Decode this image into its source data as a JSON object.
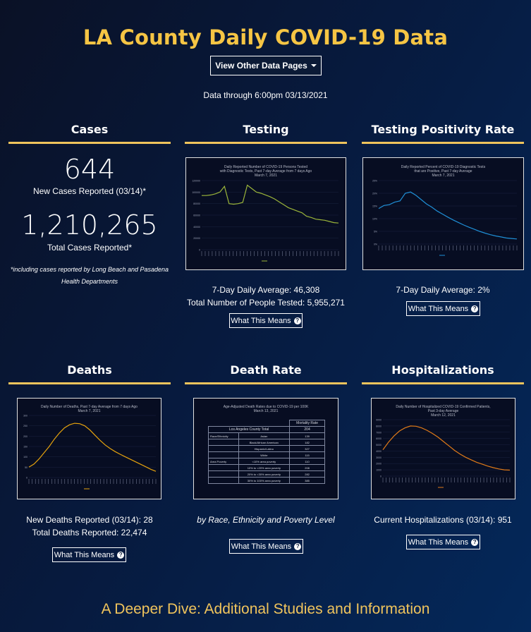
{
  "page": {
    "title": "LA County Daily COVID-19 Data",
    "dropdown_label": "View Other Data Pages",
    "updated": "Data through 6:00pm 03/13/2021",
    "footer": "A Deeper Dive: Additional Studies and Information"
  },
  "cases": {
    "title": "Cases",
    "new_count": "644",
    "new_label": "New Cases Reported (03/14)*",
    "total_count": "1,210,265",
    "total_label": "Total Cases Reported*",
    "note_line1": "*including cases reported by Long Beach and Pasadena",
    "note_line2": "Health Departments"
  },
  "testing": {
    "title": "Testing",
    "chart_title1": "Daily Reported Number of COVID-19 Persons Tested",
    "chart_title2": "with Diagnostic Tests, Past 7-day Average from 7 days Ago",
    "chart_date": "March 7, 2021",
    "avg_text": "7-Day Daily Average: 46,308",
    "total_text": "Total Number of People Tested: 5,955,271",
    "button": "What This Means"
  },
  "positivity": {
    "title": "Testing Positivity Rate",
    "chart_title1": "Daily Reported Percent of COVID-19 Diagnostic Tests",
    "chart_title2": "that are Positive, Past 7-day Average",
    "chart_date": "March 7, 2021",
    "avg_text": "7-Day Daily Average: 2%",
    "button": "What This Means"
  },
  "deaths": {
    "title": "Deaths",
    "chart_title1": "Daily Number of Deaths, Past 7-day Average from 7 days Ago",
    "chart_date": "March 7, 2021",
    "new_text": "New Deaths Reported (03/14): 28",
    "total_text": "Total Deaths Reported: 22,474",
    "button": "What This Means"
  },
  "death_rate": {
    "title": "Death Rate",
    "chart_title1": "Age-Adjusted Death Rates due to COVID-19 per 100K",
    "chart_date": "March 13, 2021",
    "caption": "by Race, Ethnicity and Poverty Level",
    "button": "What This Means",
    "table": {
      "header": "Mortality Rate",
      "county_label": "Los Angeles County Total",
      "county_value": "204",
      "group_race": "Race/Ethnicity",
      "group_poverty": "Area Poverty",
      "rows": [
        {
          "label": "Asian",
          "value": "139"
        },
        {
          "label": "Black/African American",
          "value": "182"
        },
        {
          "label": "Hispanic/Latino",
          "value": "327"
        },
        {
          "label": "White",
          "value": "115"
        },
        {
          "label": "<10% area poverty",
          "value": "110"
        },
        {
          "label": "10% to <20% area poverty",
          "value": "208"
        },
        {
          "label": "20% to <30% area poverty",
          "value": "282"
        },
        {
          "label": "30% to 100% area poverty",
          "value": "385"
        }
      ]
    }
  },
  "hosp": {
    "title": "Hospitalizations",
    "chart_title1": "Daily Number of Hospitalized COVID-19 Confirmed Patients,",
    "chart_title2": "Past 3-day Average",
    "chart_date": "March 12, 2021",
    "current_text": "Current Hospitalizations (03/14): 951",
    "button": "What This Means"
  },
  "chart_data": [
    {
      "type": "line",
      "name": "testing",
      "color": "#9bb53a",
      "ylim": [
        0,
        120000
      ],
      "y_ticks": [
        "0",
        "20000",
        "40000",
        "60000",
        "80000",
        "100000",
        "120000"
      ],
      "values": [
        94000,
        94000,
        95000,
        97000,
        100000,
        110000,
        80000,
        79000,
        80000,
        82000,
        112000,
        106000,
        100000,
        98000,
        95000,
        92000,
        88000,
        83000,
        78000,
        73000,
        70000,
        67000,
        64000,
        58000,
        56000,
        53000,
        52000,
        51000,
        49000,
        47000,
        46300
      ]
    },
    {
      "type": "line",
      "name": "positivity",
      "color": "#1f8fd6",
      "ylim": [
        0,
        25
      ],
      "y_ticks": [
        "0%",
        "5%",
        "10%",
        "15%",
        "20%",
        "25%"
      ],
      "values": [
        14,
        15.2,
        15.5,
        16.5,
        17,
        20,
        20.5,
        19.2,
        17.5,
        15.8,
        14.5,
        13,
        11.8,
        10.6,
        9.5,
        8.5,
        7.5,
        6.6,
        5.8,
        5,
        4.3,
        3.7,
        3.2,
        2.8,
        2.4,
        2.2,
        2
      ]
    },
    {
      "type": "line",
      "name": "deaths",
      "color": "#e5a20d",
      "ylim": [
        0,
        300
      ],
      "y_ticks": [
        "0",
        "50",
        "100",
        "150",
        "200",
        "250",
        "300"
      ],
      "values": [
        50,
        65,
        90,
        120,
        150,
        185,
        215,
        240,
        255,
        262,
        260,
        250,
        230,
        205,
        180,
        158,
        140,
        125,
        112,
        100,
        88,
        76,
        64,
        52,
        40,
        30
      ]
    },
    {
      "type": "line",
      "name": "hospitalizations",
      "color": "#e07a18",
      "ylim": [
        0,
        9000
      ],
      "y_ticks": [
        "0",
        "1000",
        "2000",
        "3000",
        "4000",
        "5000",
        "6000",
        "7000",
        "8000",
        "9000"
      ],
      "values": [
        4200,
        5400,
        6400,
        7200,
        7700,
        8000,
        7950,
        7700,
        7300,
        6800,
        6200,
        5500,
        4800,
        4100,
        3500,
        3000,
        2600,
        2200,
        1900,
        1600,
        1350,
        1150,
        1000,
        951
      ]
    }
  ]
}
